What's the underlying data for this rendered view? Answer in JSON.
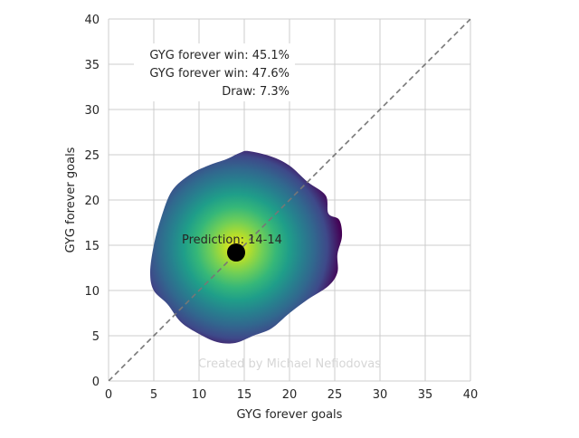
{
  "chart_data": {
    "type": "heatmap",
    "title": "",
    "xlabel": "GYG forever goals",
    "ylabel": "GYG forever goals",
    "xlim": [
      0,
      40
    ],
    "ylim": [
      0,
      40
    ],
    "xticks": [
      0,
      5,
      10,
      15,
      20,
      25,
      30,
      35,
      40
    ],
    "yticks": [
      0,
      5,
      10,
      15,
      20,
      25,
      30,
      35,
      40
    ],
    "grid": true,
    "colormap": "viridis",
    "density_center": [
      13.5,
      14.5
    ],
    "density_outline": [
      [
        15.5,
        25.4
      ],
      [
        18,
        24.8
      ],
      [
        20,
        23.8
      ],
      [
        22,
        22
      ],
      [
        24,
        20.5
      ],
      [
        24.3,
        18.5
      ],
      [
        25.5,
        17.8
      ],
      [
        25.8,
        16
      ],
      [
        25.3,
        14
      ],
      [
        25.3,
        12
      ],
      [
        24.3,
        10.5
      ],
      [
        22,
        9
      ],
      [
        20,
        7.5
      ],
      [
        18,
        5.8
      ],
      [
        16,
        5
      ],
      [
        14,
        4.2
      ],
      [
        12,
        4.3
      ],
      [
        10,
        5.2
      ],
      [
        8,
        6.5
      ],
      [
        6.5,
        8.5
      ],
      [
        5,
        10
      ],
      [
        4.6,
        12
      ],
      [
        5,
        15
      ],
      [
        5.8,
        18
      ],
      [
        7,
        21
      ],
      [
        9,
        22.8
      ],
      [
        11,
        23.8
      ],
      [
        13,
        24.5
      ],
      [
        14.5,
        25.2
      ]
    ],
    "prediction_point": {
      "x": 14.1,
      "y": 14.2,
      "label": "Prediction: 14-14"
    },
    "reference_line": {
      "from": [
        0,
        0
      ],
      "to": [
        40,
        40
      ],
      "style": "dashed"
    },
    "annotations": [
      "GYG forever win: 45.1%",
      "GYG forever win: 47.6%",
      "Draw: 7.3%"
    ],
    "watermark": "Created by Michael Nefiodovas",
    "colors": {
      "grid": "#cccccc",
      "reference": "#777777",
      "point": "#000000",
      "watermark": "#d6d6d6"
    }
  }
}
